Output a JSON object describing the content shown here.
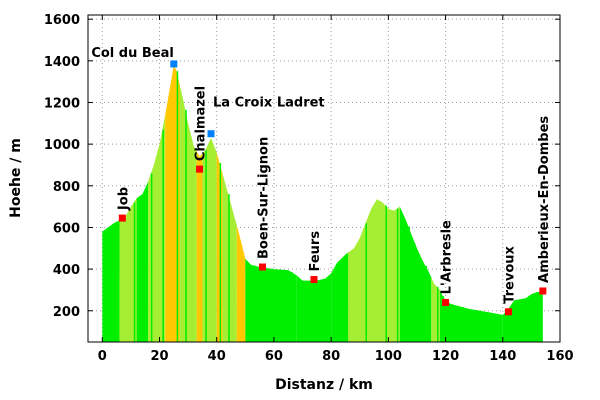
{
  "chart_data": {
    "type": "area",
    "xlabel": "Distanz / km",
    "ylabel": "Hoehe / m",
    "xlim": [
      -5,
      160
    ],
    "ylim": [
      50,
      1620
    ],
    "xticks": [
      0,
      20,
      40,
      60,
      80,
      100,
      120,
      140,
      160
    ],
    "yticks": [
      200,
      400,
      600,
      800,
      1000,
      1200,
      1400,
      1600
    ],
    "grid": true,
    "profile_colors": [
      "#00ee00",
      "#a6ee33",
      "#ffc800"
    ],
    "profile": [
      [
        0,
        580
      ],
      [
        2,
        600
      ],
      [
        4,
        620
      ],
      [
        6,
        635
      ],
      [
        8,
        650
      ],
      [
        10,
        700
      ],
      [
        12,
        740
      ],
      [
        14,
        760
      ],
      [
        16,
        820
      ],
      [
        18,
        900
      ],
      [
        20,
        1000
      ],
      [
        22,
        1140
      ],
      [
        24,
        1300
      ],
      [
        25,
        1380
      ],
      [
        26,
        1350
      ],
      [
        28,
        1230
      ],
      [
        30,
        1100
      ],
      [
        32,
        990
      ],
      [
        34,
        940
      ],
      [
        36,
        970
      ],
      [
        38,
        1030
      ],
      [
        40,
        960
      ],
      [
        42,
        860
      ],
      [
        44,
        760
      ],
      [
        46,
        660
      ],
      [
        48,
        560
      ],
      [
        50,
        450
      ],
      [
        52,
        420
      ],
      [
        55,
        410
      ],
      [
        60,
        400
      ],
      [
        65,
        395
      ],
      [
        68,
        370
      ],
      [
        70,
        345
      ],
      [
        75,
        345
      ],
      [
        78,
        355
      ],
      [
        80,
        380
      ],
      [
        82,
        430
      ],
      [
        85,
        470
      ],
      [
        88,
        500
      ],
      [
        90,
        550
      ],
      [
        92,
        620
      ],
      [
        94,
        690
      ],
      [
        96,
        735
      ],
      [
        98,
        720
      ],
      [
        100,
        690
      ],
      [
        102,
        680
      ],
      [
        104,
        700
      ],
      [
        106,
        640
      ],
      [
        108,
        570
      ],
      [
        110,
        500
      ],
      [
        112,
        440
      ],
      [
        114,
        390
      ],
      [
        116,
        330
      ],
      [
        118,
        300
      ],
      [
        120,
        240
      ],
      [
        124,
        225
      ],
      [
        128,
        210
      ],
      [
        132,
        200
      ],
      [
        136,
        190
      ],
      [
        140,
        180
      ],
      [
        142,
        210
      ],
      [
        144,
        250
      ],
      [
        148,
        260
      ],
      [
        150,
        280
      ],
      [
        152,
        290
      ],
      [
        154,
        290
      ]
    ],
    "segments": [
      {
        "from": 0,
        "to": 6,
        "color": 0
      },
      {
        "from": 6,
        "to": 12,
        "color": 1
      },
      {
        "from": 12,
        "to": 16,
        "color": 0
      },
      {
        "from": 16,
        "to": 22,
        "color": 1
      },
      {
        "from": 22,
        "to": 27,
        "color": 2
      },
      {
        "from": 27,
        "to": 33,
        "color": 1
      },
      {
        "from": 33,
        "to": 35,
        "color": 2
      },
      {
        "from": 35,
        "to": 40,
        "color": 1
      },
      {
        "from": 40,
        "to": 42,
        "color": 2
      },
      {
        "from": 42,
        "to": 47,
        "color": 1
      },
      {
        "from": 47,
        "to": 50,
        "color": 2
      },
      {
        "from": 50,
        "to": 68,
        "color": 0
      },
      {
        "from": 68,
        "to": 80,
        "color": 0
      },
      {
        "from": 80,
        "to": 86,
        "color": 0
      },
      {
        "from": 86,
        "to": 104,
        "color": 1
      },
      {
        "from": 104,
        "to": 115,
        "color": 0
      },
      {
        "from": 115,
        "to": 118,
        "color": 1
      },
      {
        "from": 118,
        "to": 140,
        "color": 0
      },
      {
        "from": 140,
        "to": 154,
        "color": 0
      }
    ],
    "stripes": [
      3,
      5,
      11,
      13,
      17,
      21,
      26,
      29,
      36,
      41,
      44,
      53,
      57,
      62,
      66,
      70,
      76,
      79,
      83,
      92,
      99,
      103,
      107,
      113,
      117,
      119,
      121,
      126,
      131,
      135,
      141,
      145,
      149,
      151
    ],
    "markers": [
      {
        "name": "Job",
        "x": 7,
        "y": 645,
        "color": "#ff0000",
        "label_rotated": true
      },
      {
        "name": "Col du Beal",
        "x": 25,
        "y": 1385,
        "color": "#0080ff",
        "label_rotated": false
      },
      {
        "name": "Chalmazel",
        "x": 34,
        "y": 880,
        "color": "#ff0000",
        "label_rotated": true
      },
      {
        "name": "La Croix Ladret",
        "x": 38,
        "y": 1050,
        "color": "#0080ff",
        "label_rotated": false
      },
      {
        "name": "Boen-Sur-Lignon",
        "x": 56,
        "y": 410,
        "color": "#ff0000",
        "label_rotated": true
      },
      {
        "name": "Feurs",
        "x": 74,
        "y": 350,
        "color": "#ff0000",
        "label_rotated": true
      },
      {
        "name": "L'Arbresle",
        "x": 120,
        "y": 240,
        "color": "#ff0000",
        "label_rotated": true
      },
      {
        "name": "Trevoux",
        "x": 142,
        "y": 195,
        "color": "#ff0000",
        "label_rotated": true
      },
      {
        "name": "Amberieux-En-Dombes",
        "x": 154,
        "y": 295,
        "color": "#ff0000",
        "label_rotated": true
      }
    ]
  }
}
